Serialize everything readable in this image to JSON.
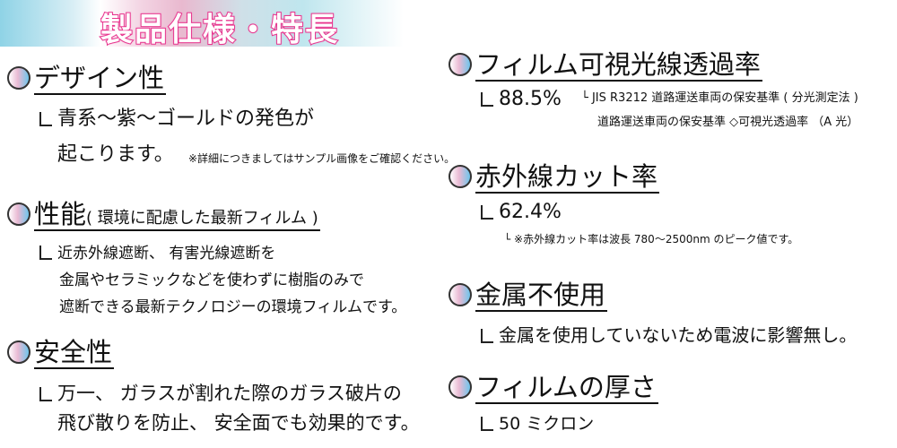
{
  "banner": {
    "title": "製品仕様・特長"
  },
  "left": {
    "design": {
      "title": "デザイン性",
      "lines": [
        "青系～紫～ゴールドの発色が",
        "起こります。"
      ],
      "note": "※詳細につきましてはサンプル画像をご確認ください。"
    },
    "performance": {
      "title": "性能",
      "subtitle": "( 環境に配慮した最新フィルム )",
      "lines": [
        "近赤外線遮断、 有害光線遮断を",
        "金属やセラミックなどを使わずに樹脂のみで",
        "遮断できる最新テクノロジーの環境フィルムです。"
      ]
    },
    "safety": {
      "title": "安全性",
      "lines": [
        "万一、 ガラスが割れた際のガラス破片の",
        "飛び散りを防止、 安全面でも効果的です。"
      ]
    }
  },
  "right": {
    "visible": {
      "title": "フィルム可視光線透過率",
      "value": "88.5%",
      "notes": [
        "└ JIS R3212 道路運送車両の保安基準 ( 分光測定法 )",
        "道路運送車両の保安基準 ◇可視光透過率 （A 光）"
      ]
    },
    "infrared": {
      "title": "赤外線カット率",
      "value": "62.4%",
      "note": "└ ※赤外線カット率は波長 780～2500nm のピーク値です。"
    },
    "metal": {
      "title": "金属不使用",
      "line": "金属を使用していないため電波に影響無し。"
    },
    "thickness": {
      "title": "フィルムの厚さ",
      "value": "50 ミクロン"
    }
  }
}
